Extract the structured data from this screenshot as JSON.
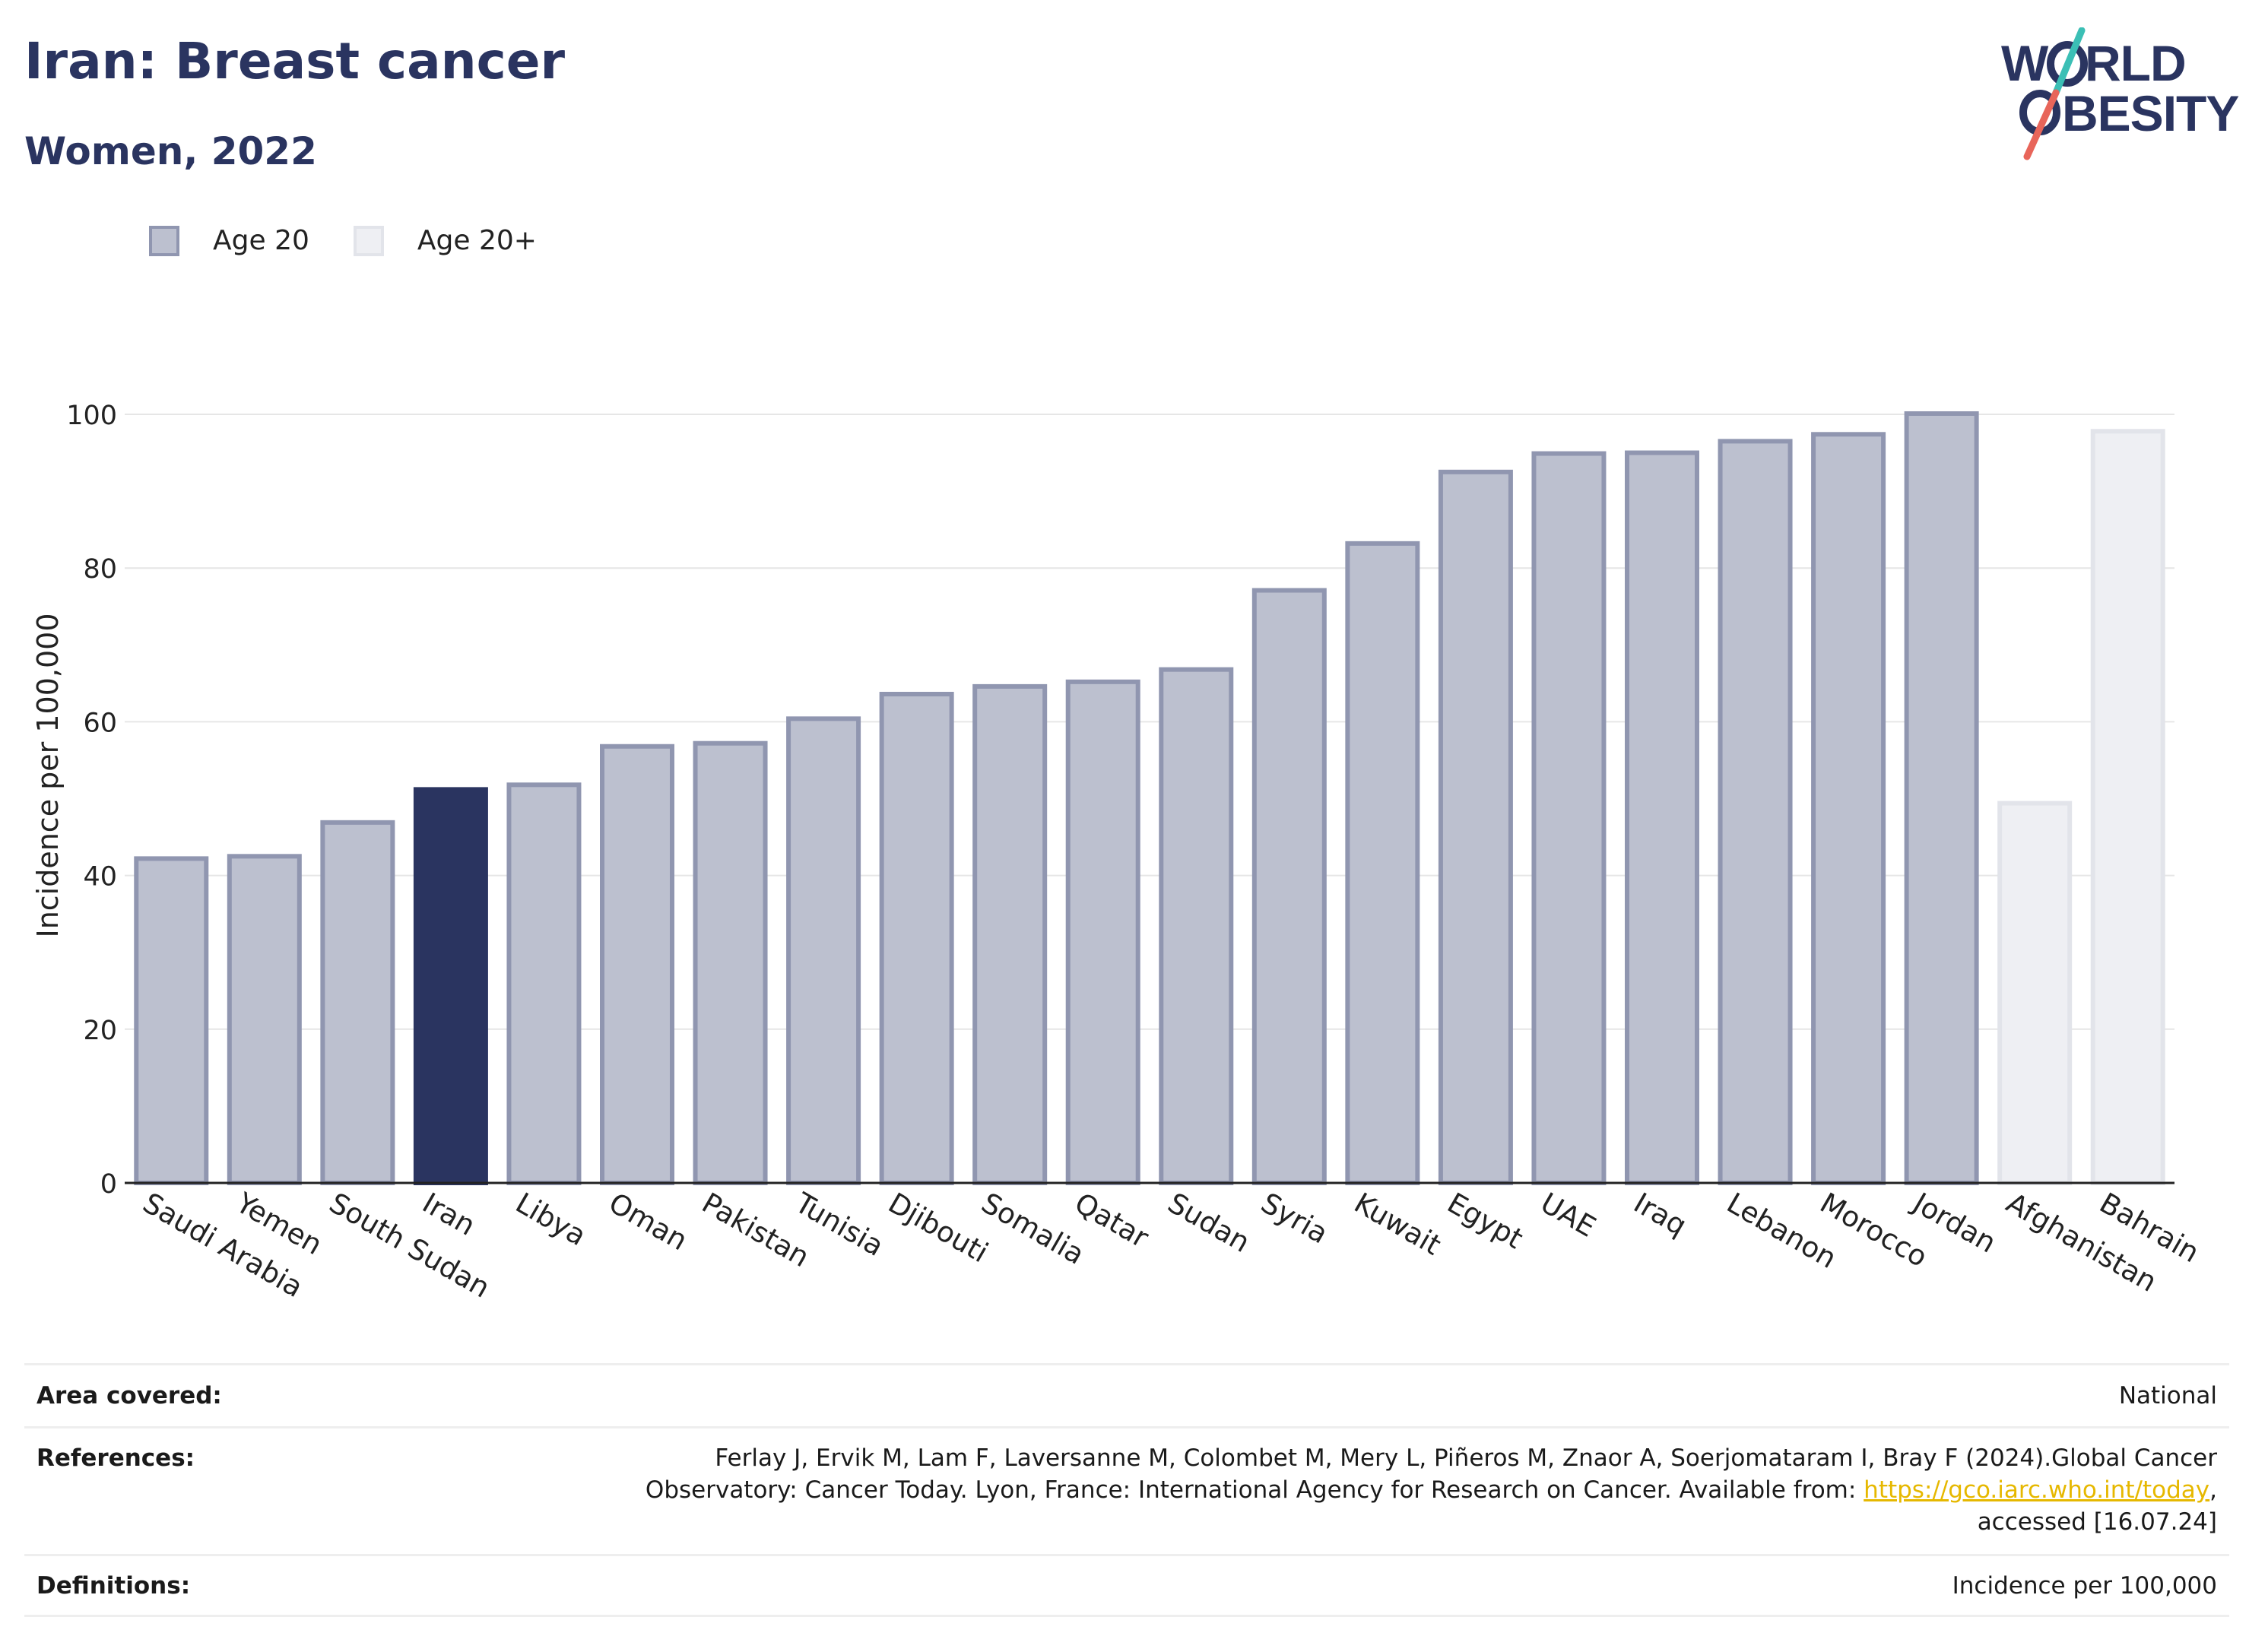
{
  "header": {
    "title": "Iran: Breast cancer",
    "subtitle": "Women, 2022"
  },
  "logo": {
    "line1": "W",
    "line1_rest": "RLD",
    "line2_rest": "BESITY",
    "slash_colors": [
      "#3bbfb5",
      "#e8655a"
    ]
  },
  "legend": [
    {
      "label": "Age 20",
      "fill": "#bcc0cf",
      "stroke": "#9096b0"
    },
    {
      "label": "Age 20+",
      "fill": "#eeeff3",
      "stroke": "#e2e4ea"
    }
  ],
  "colors": {
    "highlight": "#2a3460",
    "age20_fill": "#bcc0cf",
    "age20_stroke": "#9096b0",
    "age20plus_fill": "#eeeff3",
    "age20plus_stroke": "#e2e4ea"
  },
  "chart_data": {
    "type": "bar",
    "ylabel": "Incidence per 100,000",
    "ylim": [
      0,
      110
    ],
    "yticks": [
      0,
      20,
      40,
      60,
      80,
      100
    ],
    "grid": true,
    "legend_position": "top-left",
    "highlight": "Iran",
    "categories": [
      "Saudi Arabia",
      "Yemen",
      "South Sudan",
      "Iran",
      "Libya",
      "Oman",
      "Pakistan",
      "Tunisia",
      "Djibouti",
      "Somalia",
      "Qatar",
      "Sudan",
      "Syria",
      "Kuwait",
      "Egypt",
      "UAE",
      "Iraq",
      "Lebanon",
      "Morocco",
      "Jordan",
      "Afghanistan",
      "Bahrain"
    ],
    "values": [
      42.2,
      42.5,
      46.9,
      51.2,
      51.8,
      56.8,
      57.2,
      60.4,
      63.6,
      64.6,
      65.2,
      66.8,
      77.1,
      83.2,
      92.5,
      94.9,
      95.0,
      96.5,
      97.4,
      100.1,
      49.4,
      97.8
    ],
    "series_group": [
      "Age 20",
      "Age 20",
      "Age 20",
      "Age 20",
      "Age 20",
      "Age 20",
      "Age 20",
      "Age 20",
      "Age 20",
      "Age 20",
      "Age 20",
      "Age 20",
      "Age 20",
      "Age 20",
      "Age 20",
      "Age 20",
      "Age 20",
      "Age 20",
      "Age 20",
      "Age 20",
      "Age 20+",
      "Age 20+"
    ]
  },
  "footer": {
    "area_label": "Area covered:",
    "area_value": "National",
    "ref_label": "References:",
    "ref_line1": "Ferlay J, Ervik M, Lam F, Laversanne M, Colombet M, Mery L, Piñeros M, Znaor A, Soerjomataram I, Bray F (2024).Global Cancer",
    "ref_line2": "Observatory: Cancer Today. Lyon, France: International Agency for Research on Cancer. Available from:",
    "ref_link": "https://gco.iarc.who.int/today",
    "ref_line3": "accessed [16.07.24]",
    "def_label": "Definitions:",
    "def_value": "Incidence per 100,000"
  }
}
